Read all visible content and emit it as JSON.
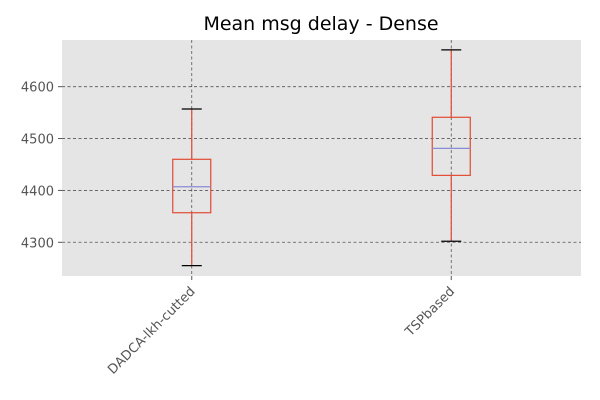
{
  "chart_data": {
    "type": "box",
    "title": "Mean msg delay - Dense",
    "xlabel": "",
    "ylabel": "",
    "categories": [
      "DADCA-lkh-cutted",
      "TSPbased"
    ],
    "boxes": [
      {
        "name": "DADCA-lkh-cutted",
        "whisker_low": 4255,
        "q1": 4357,
        "median": 4407,
        "q3": 4460,
        "whisker_high": 4557
      },
      {
        "name": "TSPbased",
        "whisker_low": 4302,
        "q1": 4429,
        "median": 4481,
        "q3": 4541,
        "whisker_high": 4671
      }
    ],
    "yticks": [
      4300,
      4400,
      4500,
      4600
    ],
    "ylim": [
      4235,
      4690
    ],
    "grid": true,
    "legend": "none",
    "colors": {
      "background": "#e5e5e5",
      "grid": "#555555",
      "box": "#e24a33",
      "median": "#8a8ad6",
      "caps": "#000000",
      "text": "#555555"
    }
  }
}
